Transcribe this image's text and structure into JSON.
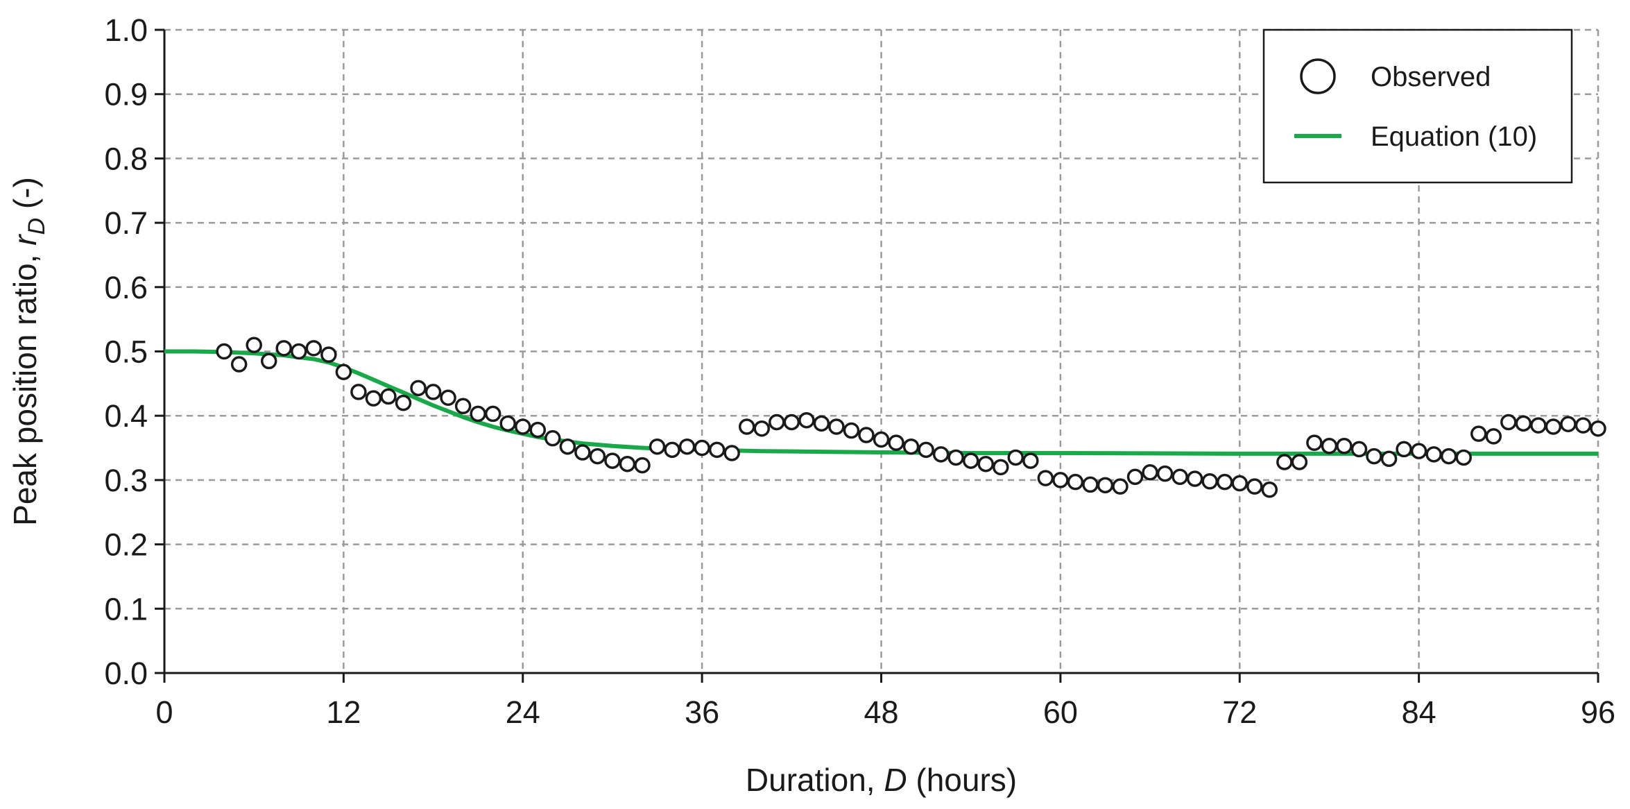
{
  "chart_data": {
    "type": "scatter",
    "xlabel": "Duration, D (hours)",
    "xlabel_parts": {
      "prefix": "Duration, ",
      "symbol": "D",
      "suffix": " (hours)"
    },
    "ylabel": "Peak position ratio, rD (-)",
    "ylabel_parts": {
      "prefix": "Peak position ratio, ",
      "symbol": "r",
      "subscript": "D",
      "suffix": " (-)"
    },
    "xlim": [
      0,
      96
    ],
    "ylim": [
      0.0,
      1.0
    ],
    "xticks": [
      0,
      12,
      24,
      36,
      48,
      60,
      72,
      84,
      96
    ],
    "xtick_labels": [
      "0",
      "12",
      "24",
      "36",
      "48",
      "60",
      "72",
      "84",
      "96"
    ],
    "yticks": [
      0.0,
      0.1,
      0.2,
      0.3,
      0.4,
      0.5,
      0.6,
      0.7,
      0.8,
      0.9,
      1.0
    ],
    "ytick_labels": [
      "0.0",
      "0.1",
      "0.2",
      "0.3",
      "0.4",
      "0.5",
      "0.6",
      "0.7",
      "0.8",
      "0.9",
      "1.0"
    ],
    "grid": true,
    "legend_placement": "top-right",
    "series": [
      {
        "name": "Observed",
        "kind": "scatter",
        "marker": "open-circle",
        "color": "#1a1a1a",
        "x": [
          4,
          5,
          6,
          7,
          8,
          9,
          10,
          11,
          12,
          13,
          14,
          15,
          16,
          17,
          18,
          19,
          20,
          21,
          22,
          23,
          24,
          25,
          26,
          27,
          28,
          29,
          30,
          31,
          32,
          33,
          34,
          35,
          36,
          37,
          38,
          39,
          40,
          41,
          42,
          43,
          44,
          45,
          46,
          47,
          48,
          49,
          50,
          51,
          52,
          53,
          54,
          55,
          56,
          57,
          58,
          59,
          60,
          61,
          62,
          63,
          64,
          65,
          66,
          67,
          68,
          69,
          70,
          71,
          72,
          73,
          74,
          75,
          76,
          77,
          78,
          79,
          80,
          81,
          82,
          83,
          84,
          85,
          86,
          87,
          88,
          89,
          90,
          91,
          92,
          93,
          94,
          95,
          96
        ],
        "y": [
          0.5,
          0.48,
          0.51,
          0.485,
          0.505,
          0.5,
          0.505,
          0.495,
          0.468,
          0.437,
          0.427,
          0.43,
          0.42,
          0.443,
          0.437,
          0.428,
          0.415,
          0.403,
          0.403,
          0.388,
          0.383,
          0.378,
          0.365,
          0.352,
          0.343,
          0.337,
          0.33,
          0.325,
          0.323,
          0.352,
          0.347,
          0.352,
          0.35,
          0.347,
          0.342,
          0.383,
          0.38,
          0.39,
          0.39,
          0.393,
          0.388,
          0.383,
          0.377,
          0.37,
          0.363,
          0.358,
          0.352,
          0.347,
          0.34,
          0.335,
          0.33,
          0.325,
          0.32,
          0.335,
          0.33,
          0.303,
          0.3,
          0.297,
          0.293,
          0.292,
          0.29,
          0.305,
          0.312,
          0.31,
          0.305,
          0.302,
          0.298,
          0.297,
          0.295,
          0.29,
          0.285,
          0.328,
          0.328,
          0.358,
          0.353,
          0.353,
          0.348,
          0.337,
          0.333,
          0.348,
          0.345,
          0.34,
          0.337,
          0.335,
          0.372,
          0.368,
          0.39,
          0.388,
          0.385,
          0.383,
          0.387,
          0.385,
          0.38
        ]
      },
      {
        "name": "Equation (10)",
        "kind": "line",
        "color": "#1aa84a",
        "x": [
          0,
          2,
          4,
          6,
          8,
          10,
          11,
          12,
          13,
          14,
          15,
          16,
          17,
          18,
          19,
          20,
          21,
          22,
          23,
          24,
          25,
          26,
          27,
          28,
          30,
          32,
          34,
          36,
          40,
          44,
          48,
          54,
          60,
          72,
          84,
          96
        ],
        "y": [
          0.5,
          0.5,
          0.499,
          0.497,
          0.494,
          0.488,
          0.483,
          0.475,
          0.466,
          0.456,
          0.446,
          0.436,
          0.426,
          0.416,
          0.407,
          0.398,
          0.39,
          0.383,
          0.377,
          0.372,
          0.367,
          0.363,
          0.36,
          0.357,
          0.353,
          0.35,
          0.348,
          0.347,
          0.345,
          0.344,
          0.343,
          0.342,
          0.342,
          0.341,
          0.341,
          0.341
        ]
      }
    ]
  }
}
